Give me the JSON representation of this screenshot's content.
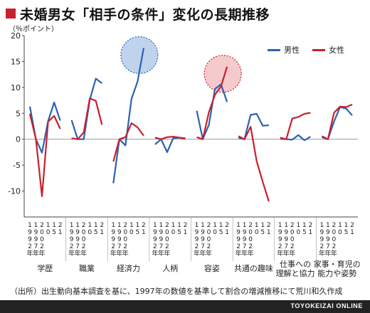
{
  "title": "未婚男女「相手の条件」変化の長期推移",
  "unit_label": "（％ポイント）",
  "note": "（出所）出生動向基本調査を基に、1997年の数値を基準して割合の増減推移にて荒川和久作成",
  "footer": "TOYOKEIZAI ONLINE",
  "colors": {
    "male": "#2b62b0",
    "female": "#c8202c",
    "male_circle": "#a9c4e6",
    "female_circle": "#f1b8bc"
  },
  "chart_data": {
    "type": "line",
    "ylim": [
      -15,
      20
    ],
    "yticks": [
      "20",
      "15",
      "10",
      "5",
      "0",
      "-5",
      "-10",
      "-15"
    ],
    "x": [
      "1992年",
      "1997年",
      "2002年",
      "2010年",
      "2015年",
      "2021年"
    ],
    "x_tick_labels": [
      "1992年",
      "1997年",
      "2002年",
      "10",
      "15",
      "21"
    ],
    "legend": [
      "男性",
      "女性"
    ],
    "categories": [
      "学歴",
      "職業",
      "経済力",
      "人柄",
      "容姿",
      "共通の趣味",
      "仕事への理解と協力",
      "家事・育児の能力や姿勢"
    ],
    "series": [
      {
        "name": "男性",
        "values": [
          [
            6.3,
            0,
            -2.6,
            3.5,
            7.1,
            3.6
          ],
          [
            3.7,
            0,
            0,
            7.6,
            11.7,
            10.8
          ],
          [
            -8.5,
            0,
            -1.2,
            7.8,
            11.1,
            17.6
          ],
          [
            -1,
            0,
            -2.5,
            0.2,
            0.3,
            0.2
          ],
          [
            5.5,
            0,
            2.8,
            9.7,
            10.6,
            7.2
          ],
          [
            0.3,
            0,
            4.7,
            4.9,
            2.6,
            2.7
          ],
          [
            0.3,
            0,
            -0.1,
            0.8,
            -0.2,
            0.5
          ],
          [
            0.6,
            0,
            3.4,
            6.2,
            5.9,
            4.6
          ]
        ]
      },
      {
        "name": "女性",
        "values": [
          [
            4.9,
            0,
            -11,
            3.4,
            4.5,
            2
          ],
          [
            0.2,
            0,
            1.3,
            7.9,
            7.4,
            2.8
          ],
          [
            -4.3,
            0,
            0.4,
            3.1,
            2.3,
            0.7
          ],
          [
            0.3,
            0,
            0.4,
            0.5,
            0.3,
            0.1
          ],
          [
            0.4,
            0,
            5.2,
            8.6,
            10.2,
            14
          ],
          [
            0.6,
            0,
            2.4,
            -4.2,
            -8.2,
            -12
          ],
          [
            0.1,
            0,
            4,
            4.3,
            4.9,
            5.1
          ],
          [
            0.4,
            0,
            5.1,
            6.3,
            6.2,
            6.7
          ]
        ]
      }
    ],
    "highlights": [
      {
        "series": "男性",
        "category": "経済力"
      },
      {
        "series": "女性",
        "category": "容姿"
      }
    ]
  }
}
